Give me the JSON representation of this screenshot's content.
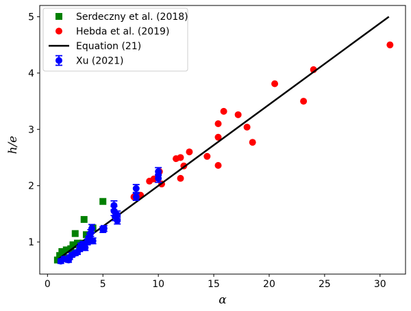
{
  "chart_data": {
    "type": "scatter",
    "xlabel": "α",
    "ylabel": "h/e",
    "xlim": [
      -0.7,
      32.3
    ],
    "ylim": [
      0.43,
      5.2
    ],
    "xticks": [
      0,
      5,
      10,
      15,
      20,
      25,
      30
    ],
    "yticks": [
      1,
      2,
      3,
      4,
      5
    ],
    "grid": false,
    "legend_position": "top-left",
    "series": [
      {
        "name": "Serdeczny et al. (2018)",
        "marker": "square",
        "color": "#008000",
        "points": [
          [
            0.9,
            0.68
          ],
          [
            1.1,
            0.76
          ],
          [
            1.3,
            0.83
          ],
          [
            1.5,
            0.72
          ],
          [
            1.7,
            0.86
          ],
          [
            2.1,
            0.88
          ],
          [
            2.3,
            0.95
          ],
          [
            2.5,
            1.15
          ],
          [
            2.7,
            0.98
          ],
          [
            3.2,
            0.98
          ],
          [
            3.3,
            1.4
          ],
          [
            3.5,
            1.13
          ],
          [
            4.1,
            1.25
          ],
          [
            5.0,
            1.72
          ]
        ]
      },
      {
        "name": "Hebda et al. (2019)",
        "marker": "circle",
        "color": "#ff0000",
        "points": [
          [
            7.8,
            1.8
          ],
          [
            8.4,
            1.83
          ],
          [
            9.2,
            2.08
          ],
          [
            9.6,
            2.12
          ],
          [
            10.1,
            2.25
          ],
          [
            10.3,
            2.03
          ],
          [
            11.6,
            2.48
          ],
          [
            12.0,
            2.5
          ],
          [
            12.0,
            2.13
          ],
          [
            12.3,
            2.35
          ],
          [
            12.8,
            2.6
          ],
          [
            14.4,
            2.52
          ],
          [
            15.4,
            2.36
          ],
          [
            15.4,
            2.86
          ],
          [
            15.4,
            3.1
          ],
          [
            15.9,
            3.32
          ],
          [
            17.2,
            3.26
          ],
          [
            18.0,
            3.04
          ],
          [
            18.5,
            2.77
          ],
          [
            20.5,
            3.81
          ],
          [
            23.1,
            3.5
          ],
          [
            24.0,
            4.06
          ],
          [
            30.9,
            4.5
          ]
        ]
      },
      {
        "name": "Equation (21)",
        "type": "line",
        "color": "#000000",
        "points": [
          [
            1.0,
            0.7
          ],
          [
            30.8,
            5.0
          ]
        ]
      },
      {
        "name": "Xu (2021)",
        "marker": "circle",
        "color": "#0000ff",
        "error_bars": true,
        "points": [
          [
            1.2,
            0.66,
            0.04
          ],
          [
            1.5,
            0.7,
            0.04
          ],
          [
            1.9,
            0.68,
            0.04
          ],
          [
            2.0,
            0.73,
            0.04
          ],
          [
            2.2,
            0.77,
            0.04
          ],
          [
            2.5,
            0.8,
            0.04
          ],
          [
            2.7,
            0.82,
            0.04
          ],
          [
            2.9,
            0.88,
            0.05
          ],
          [
            3.0,
            0.93,
            0.05
          ],
          [
            3.2,
            0.96,
            0.05
          ],
          [
            3.4,
            0.9,
            0.05
          ],
          [
            3.6,
            1.0,
            0.05
          ],
          [
            3.7,
            1.05,
            0.05
          ],
          [
            3.8,
            1.1,
            0.06
          ],
          [
            3.9,
            1.16,
            0.06
          ],
          [
            4.0,
            1.24,
            0.07
          ],
          [
            4.1,
            1.02,
            0.05
          ],
          [
            5.0,
            1.22,
            0.05
          ],
          [
            5.1,
            1.24,
            0.05
          ],
          [
            6.0,
            1.55,
            0.08
          ],
          [
            6.0,
            1.65,
            0.08
          ],
          [
            6.1,
            1.45,
            0.07
          ],
          [
            6.3,
            1.38,
            0.06
          ],
          [
            6.3,
            1.48,
            0.07
          ],
          [
            8.0,
            1.8,
            0.06
          ],
          [
            8.0,
            1.95,
            0.07
          ],
          [
            10.0,
            2.13,
            0.07
          ],
          [
            10.0,
            2.25,
            0.07
          ]
        ]
      }
    ]
  }
}
